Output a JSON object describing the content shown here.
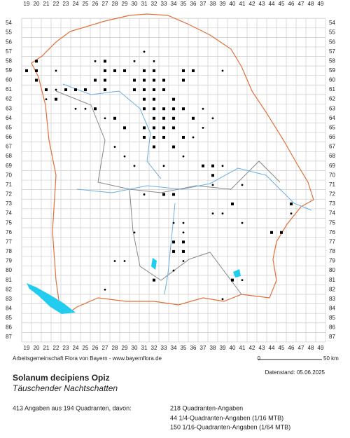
{
  "columns": [
    19,
    20,
    21,
    22,
    23,
    24,
    25,
    26,
    27,
    28,
    29,
    30,
    31,
    32,
    33,
    34,
    35,
    36,
    37,
    38,
    39,
    40,
    41,
    42,
    43,
    44,
    45,
    46,
    47,
    48,
    49
  ],
  "rows": [
    54,
    55,
    56,
    57,
    58,
    59,
    60,
    61,
    62,
    63,
    64,
    65,
    66,
    67,
    68,
    69,
    70,
    71,
    72,
    73,
    74,
    75,
    76,
    77,
    78,
    79,
    80,
    81,
    82,
    83,
    84,
    85,
    86,
    87
  ],
  "quadrant_records": [
    [
      27,
      58
    ],
    [
      27,
      59
    ],
    [
      27,
      60
    ],
    [
      28,
      59
    ],
    [
      29,
      59
    ],
    [
      31,
      59
    ],
    [
      31,
      60
    ],
    [
      32,
      59
    ],
    [
      32,
      60
    ],
    [
      32,
      61
    ],
    [
      33,
      60
    ],
    [
      35,
      59
    ],
    [
      35,
      60
    ],
    [
      36,
      59
    ],
    [
      20,
      59
    ],
    [
      20,
      60
    ],
    [
      21,
      61
    ],
    [
      23,
      61
    ],
    [
      24,
      61
    ],
    [
      25,
      61
    ],
    [
      22,
      62
    ],
    [
      26,
      63
    ],
    [
      31,
      63
    ],
    [
      32,
      63
    ],
    [
      33,
      63
    ],
    [
      34,
      63
    ],
    [
      35,
      63
    ],
    [
      32,
      64
    ],
    [
      33,
      64
    ],
    [
      34,
      64
    ],
    [
      31,
      65
    ],
    [
      32,
      65
    ],
    [
      33,
      65
    ],
    [
      34,
      65
    ],
    [
      31,
      66
    ],
    [
      32,
      66
    ],
    [
      33,
      66
    ],
    [
      35,
      66
    ],
    [
      32,
      67
    ],
    [
      34,
      67
    ],
    [
      28,
      64
    ],
    [
      29,
      65
    ],
    [
      36,
      64
    ],
    [
      30,
      60
    ],
    [
      30,
      61
    ],
    [
      31,
      61
    ],
    [
      33,
      61
    ],
    [
      34,
      62
    ],
    [
      26,
      60
    ],
    [
      27,
      61
    ],
    [
      20,
      58
    ],
    [
      19,
      59
    ],
    [
      38,
      69
    ],
    [
      38,
      70
    ],
    [
      37,
      69
    ],
    [
      40,
      73
    ],
    [
      34,
      72
    ],
    [
      33,
      72
    ],
    [
      35,
      77
    ],
    [
      34,
      78
    ],
    [
      35,
      78
    ],
    [
      34,
      77
    ],
    [
      32,
      81
    ],
    [
      40,
      81
    ],
    [
      44,
      76
    ],
    [
      45,
      76
    ],
    [
      46,
      73
    ],
    [
      31,
      62
    ],
    [
      32,
      62
    ]
  ],
  "subquadrant_records": [
    [
      22,
      59
    ],
    [
      26,
      58
    ],
    [
      31,
      57
    ],
    [
      32,
      58
    ],
    [
      39,
      59
    ],
    [
      37,
      63
    ],
    [
      37,
      65
    ],
    [
      38,
      64
    ],
    [
      27,
      64
    ],
    [
      25,
      63
    ],
    [
      28,
      67
    ],
    [
      29,
      68
    ],
    [
      30,
      69
    ],
    [
      33,
      69
    ],
    [
      36,
      66
    ],
    [
      38,
      71
    ],
    [
      39,
      69
    ],
    [
      41,
      71
    ],
    [
      39,
      74
    ],
    [
      38,
      74
    ],
    [
      35,
      75
    ],
    [
      30,
      76
    ],
    [
      35,
      76
    ],
    [
      28,
      79
    ],
    [
      29,
      79
    ],
    [
      27,
      82
    ],
    [
      34,
      80
    ],
    [
      35,
      79
    ],
    [
      39,
      83
    ],
    [
      41,
      75
    ],
    [
      41,
      81
    ],
    [
      46,
      74
    ],
    [
      35,
      68
    ],
    [
      24,
      63
    ],
    [
      22,
      61
    ],
    [
      21,
      62
    ],
    [
      30,
      58
    ],
    [
      31,
      72
    ],
    [
      34,
      75
    ]
  ],
  "footer": "Arbeitsgemeinschaft Flora von Bayern - www.bayernflora.de",
  "scale_start": "0",
  "scale_end": "50 km",
  "data_date": "Datenstand: 05.06.2025",
  "title": "Solanum decipiens Opiz",
  "subtitle": "Täuschender Nachtschatten",
  "summary": "413 Angaben aus 194 Quadranten, davon:",
  "breakdown": [
    "218 Quadranten-Angaben",
    "44 1/4-Quadranten-Angaben (1/16 MTB)",
    "150 1/16-Quadranten-Angaben (1/64 MTB)"
  ]
}
